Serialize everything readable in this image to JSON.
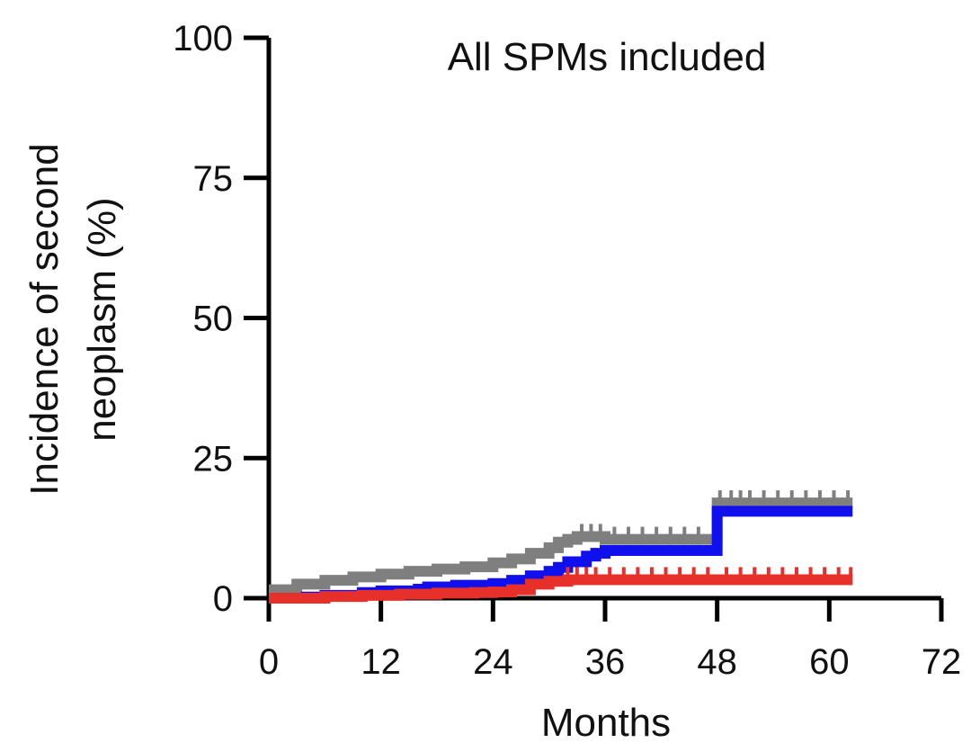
{
  "chart_data": {
    "type": "line",
    "title": "All SPMs included",
    "xlabel": "Months",
    "ylabel": [
      "Incidence of second",
      "neoplasm (%)"
    ],
    "xlim": [
      0,
      72
    ],
    "ylim": [
      0,
      100
    ],
    "xticks": [
      0,
      12,
      24,
      36,
      48,
      60,
      72
    ],
    "yticks": [
      0,
      25,
      50,
      75,
      100
    ],
    "grid": false,
    "series": [
      {
        "color": "#7f7f7f",
        "x": [
          0,
          3,
          6,
          9,
          12,
          15,
          18,
          21,
          24,
          26,
          28,
          30,
          31,
          32,
          33,
          36,
          40,
          44,
          47.5,
          48,
          52,
          56,
          60,
          62.5
        ],
        "y": [
          1.5,
          2.5,
          3.2,
          3.8,
          4.3,
          4.8,
          5.2,
          5.6,
          6.3,
          7.0,
          8.0,
          9.0,
          10.0,
          10.5,
          11.0,
          10.5,
          10.5,
          10.5,
          10.5,
          17.0,
          17.0,
          17.0,
          17.0,
          17.0
        ],
        "censor_x": [
          33.5,
          34.5,
          35.5,
          37,
          38.5,
          40,
          41.5,
          43,
          44.5,
          46,
          48.3,
          49.5,
          50.5,
          51.5,
          53,
          54.5,
          56,
          57.5,
          59,
          60.5,
          62
        ]
      },
      {
        "color": "#1010ee",
        "x": [
          0,
          4,
          6,
          10,
          12,
          16,
          17,
          20,
          24,
          26,
          28,
          30,
          31,
          32,
          34,
          35,
          36,
          40,
          44,
          47.5,
          48,
          52,
          56,
          60,
          62.5
        ],
        "y": [
          0,
          0.2,
          0.5,
          1.0,
          1.3,
          1.6,
          2.0,
          2.3,
          2.6,
          3.2,
          4.0,
          4.8,
          5.5,
          6.5,
          7.5,
          8.0,
          8.5,
          8.5,
          8.5,
          8.5,
          15.5,
          15.5,
          15.5,
          15.5,
          15.5
        ],
        "censor_x": []
      },
      {
        "color": "#e8302a",
        "x": [
          0,
          6,
          10,
          14,
          18,
          22,
          24,
          26,
          28,
          30,
          32,
          36,
          40,
          44,
          48,
          52,
          56,
          60,
          62.5
        ],
        "y": [
          0,
          0.3,
          0.5,
          0.7,
          0.9,
          1.0,
          1.1,
          1.5,
          2.5,
          3.0,
          3.3,
          3.3,
          3.3,
          3.3,
          3.3,
          3.3,
          3.3,
          3.3,
          3.3
        ],
        "censor_x": [
          32,
          33,
          34,
          35,
          36.5,
          38,
          39.5,
          41,
          42.5,
          44,
          45.5,
          47,
          49,
          50.5,
          52,
          53.5,
          55,
          56.5,
          58,
          59.5,
          61,
          62.3
        ]
      }
    ]
  }
}
